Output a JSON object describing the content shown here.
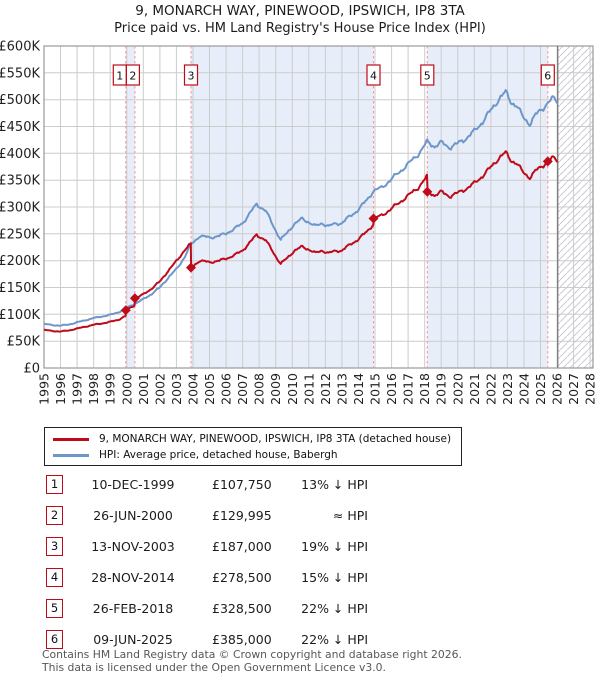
{
  "header": {
    "title": "9, MONARCH WAY, PINEWOOD, IPSWICH, IP8 3TA",
    "subtitle": "Price paid vs. HM Land Registry's House Price Index (HPI)"
  },
  "legend": {
    "price_label": "9, MONARCH WAY, PINEWOOD, IPSWICH, IP8 3TA (detached house)",
    "hpi_label": "HPI: Average price, detached house, Babergh"
  },
  "table": {
    "rows": [
      {
        "num": "1",
        "date": "10-DEC-1999",
        "price": "£107,750",
        "vs_hpi": "13% ↓ HPI"
      },
      {
        "num": "2",
        "date": "26-JUN-2000",
        "price": "£129,995",
        "vs_hpi": "≈ HPI"
      },
      {
        "num": "3",
        "date": "13-NOV-2003",
        "price": "£187,000",
        "vs_hpi": "19% ↓ HPI"
      },
      {
        "num": "4",
        "date": "28-NOV-2014",
        "price": "£278,500",
        "vs_hpi": "15% ↓ HPI"
      },
      {
        "num": "5",
        "date": "26-FEB-2018",
        "price": "£328,500",
        "vs_hpi": "22% ↓ HPI"
      },
      {
        "num": "6",
        "date": "09-JUN-2025",
        "price": "£385,000",
        "vs_hpi": "22% ↓ HPI"
      }
    ]
  },
  "footer": {
    "line1": "Contains HM Land Registry data © Crown copyright and database right 2026.",
    "line2": "This data is licensed under the Open Government Licence v3.0."
  },
  "chart_data": {
    "type": "line",
    "title": "9, MONARCH WAY, PINEWOOD, IPSWICH, IP8 3TA",
    "subtitle": "Price paid vs. HM Land Registry's House Price Index (HPI)",
    "x_range": [
      1995,
      2028.2
    ],
    "y_range_gbp": [
      0,
      600000
    ],
    "y_ticks": [
      "£0",
      "£50K",
      "£100K",
      "£150K",
      "£200K",
      "£250K",
      "£300K",
      "£350K",
      "£400K",
      "£450K",
      "£500K",
      "£550K",
      "£600K"
    ],
    "x_ticks": [
      "1995",
      "1996",
      "1997",
      "1998",
      "1999",
      "2000",
      "2001",
      "2002",
      "2003",
      "2004",
      "2005",
      "2006",
      "2007",
      "2008",
      "2009",
      "2010",
      "2011",
      "2012",
      "2013",
      "2014",
      "2015",
      "2016",
      "2017",
      "2018",
      "2019",
      "2020",
      "2021",
      "2022",
      "2023",
      "2024",
      "2025",
      "2026",
      "2027",
      "2028"
    ],
    "colors": {
      "price_line": "#bf0a1a",
      "hpi_line": "#6d97cb",
      "ownership_band": "#e8eef9",
      "sale_dash": "#f29a9a",
      "grid": "#cccccc",
      "plot_border": "#999999",
      "hatch": "#c9ccd3",
      "now_line": "#808080",
      "axis_text": "#222222"
    },
    "hpi_series": {
      "name": "HPI: Average price, detached house, Babergh",
      "unit": "GBP thousands",
      "points": [
        [
          1995,
          82
        ],
        [
          1995.5,
          80
        ],
        [
          1996,
          79
        ],
        [
          1996.5,
          81
        ],
        [
          1997,
          85
        ],
        [
          1997.5,
          89
        ],
        [
          1998,
          93
        ],
        [
          1998.5,
          96
        ],
        [
          1999,
          99
        ],
        [
          1999.5,
          104
        ],
        [
          2000,
          112
        ],
        [
          2000.5,
          120
        ],
        [
          2001,
          128
        ],
        [
          2001.5,
          138
        ],
        [
          2002,
          150
        ],
        [
          2002.5,
          168
        ],
        [
          2003,
          184
        ],
        [
          2003.5,
          207
        ],
        [
          2003.88,
          230
        ],
        [
          2004.4,
          246
        ],
        [
          2005,
          243
        ],
        [
          2005.6,
          246
        ],
        [
          2006,
          251
        ],
        [
          2006.5,
          259
        ],
        [
          2007,
          270
        ],
        [
          2007.5,
          291
        ],
        [
          2007.85,
          305
        ],
        [
          2008.4,
          293
        ],
        [
          2008.8,
          268
        ],
        [
          2009.3,
          239
        ],
        [
          2009.7,
          252
        ],
        [
          2010.1,
          268
        ],
        [
          2010.6,
          278
        ],
        [
          2011,
          272
        ],
        [
          2011.4,
          264
        ],
        [
          2011.8,
          270
        ],
        [
          2012.2,
          264
        ],
        [
          2012.6,
          269
        ],
        [
          2013,
          270
        ],
        [
          2013.5,
          283
        ],
        [
          2014,
          295
        ],
        [
          2014.5,
          313
        ],
        [
          2014.91,
          330
        ],
        [
          2015.4,
          336
        ],
        [
          2016,
          352
        ],
        [
          2016.5,
          366
        ],
        [
          2017,
          380
        ],
        [
          2017.6,
          398
        ],
        [
          2018.15,
          421
        ],
        [
          2018.6,
          413
        ],
        [
          2019,
          420
        ],
        [
          2019.5,
          411
        ],
        [
          2020,
          418
        ],
        [
          2020.5,
          428
        ],
        [
          2021,
          441
        ],
        [
          2021.5,
          459
        ],
        [
          2022,
          480
        ],
        [
          2022.5,
          502
        ],
        [
          2022.9,
          514
        ],
        [
          2023.2,
          497
        ],
        [
          2023.6,
          487
        ],
        [
          2023.9,
          469
        ],
        [
          2024.35,
          455
        ],
        [
          2024.7,
          471
        ],
        [
          2025,
          480
        ],
        [
          2025.44,
          494
        ],
        [
          2025.75,
          502
        ],
        [
          2026.04,
          497
        ]
      ]
    },
    "price_series": {
      "name": "9, MONARCH WAY, PINEWOOD, IPSWICH, IP8 3TA (detached house)",
      "unit": "GBP thousands",
      "points": [
        [
          1995,
          71
        ],
        [
          1995.5,
          69
        ],
        [
          1996,
          68
        ],
        [
          1996.5,
          70
        ],
        [
          1997,
          73.5
        ],
        [
          1997.5,
          77
        ],
        [
          1998,
          80.5
        ],
        [
          1998.5,
          83
        ],
        [
          1999,
          86
        ],
        [
          1999.5,
          90
        ],
        [
          1999.93,
          97
        ],
        [
          1999.95,
          107.75
        ],
        [
          2000.2,
          112
        ],
        [
          2000.47,
          117
        ],
        [
          2000.5,
          130
        ],
        [
          2001,
          137
        ],
        [
          2001.5,
          148
        ],
        [
          2002,
          161
        ],
        [
          2002.5,
          181
        ],
        [
          2003,
          199
        ],
        [
          2003.5,
          220
        ],
        [
          2003.87,
          231
        ],
        [
          2003.89,
          187
        ],
        [
          2004.4,
          200
        ],
        [
          2005,
          197
        ],
        [
          2005.6,
          200
        ],
        [
          2006,
          204
        ],
        [
          2006.5,
          210
        ],
        [
          2007,
          219
        ],
        [
          2007.5,
          236
        ],
        [
          2007.85,
          248
        ],
        [
          2008.4,
          238
        ],
        [
          2008.8,
          218
        ],
        [
          2009.3,
          194
        ],
        [
          2009.7,
          205
        ],
        [
          2010.1,
          218
        ],
        [
          2010.6,
          226
        ],
        [
          2011,
          221
        ],
        [
          2011.4,
          214
        ],
        [
          2011.8,
          219
        ],
        [
          2012.2,
          214
        ],
        [
          2012.6,
          218
        ],
        [
          2013,
          219
        ],
        [
          2013.5,
          230
        ],
        [
          2014,
          240
        ],
        [
          2014.5,
          254
        ],
        [
          2014.9,
          268
        ],
        [
          2014.92,
          278.5
        ],
        [
          2015.4,
          284
        ],
        [
          2016,
          297
        ],
        [
          2016.5,
          309
        ],
        [
          2017,
          321
        ],
        [
          2017.6,
          336
        ],
        [
          2018.14,
          356
        ],
        [
          2018.17,
          328.5
        ],
        [
          2018.6,
          322
        ],
        [
          2019,
          328
        ],
        [
          2019.5,
          320
        ],
        [
          2020,
          326
        ],
        [
          2020.5,
          334
        ],
        [
          2021,
          344
        ],
        [
          2021.5,
          358
        ],
        [
          2022,
          374
        ],
        [
          2022.5,
          392
        ],
        [
          2022.9,
          401
        ],
        [
          2023.2,
          388
        ],
        [
          2023.6,
          380
        ],
        [
          2023.9,
          366
        ],
        [
          2024.35,
          355
        ],
        [
          2024.7,
          367
        ],
        [
          2025,
          374
        ],
        [
          2025.44,
          385
        ],
        [
          2025.75,
          391
        ],
        [
          2026.04,
          387
        ]
      ]
    },
    "sales": [
      {
        "label": "1",
        "year": 1999.94,
        "price_gbp": 107750,
        "price_k": 107.75
      },
      {
        "label": "2",
        "year": 2000.49,
        "price_gbp": 129995,
        "price_k": 130.0
      },
      {
        "label": "3",
        "year": 2003.88,
        "price_gbp": 187000,
        "price_k": 187
      },
      {
        "label": "4",
        "year": 2014.91,
        "price_gbp": 278500,
        "price_k": 278.5
      },
      {
        "label": "5",
        "year": 2018.16,
        "price_gbp": 328500,
        "price_k": 328.5
      },
      {
        "label": "6",
        "year": 2025.44,
        "price_gbp": 385000,
        "price_k": 385
      }
    ],
    "ownership_bands": [
      [
        1999.94,
        2000.49
      ],
      [
        2003.88,
        2014.91
      ],
      [
        2018.16,
        2025.44
      ]
    ],
    "future_hatch_start": 2026.04,
    "legend_position": "bottom",
    "grid": true
  }
}
